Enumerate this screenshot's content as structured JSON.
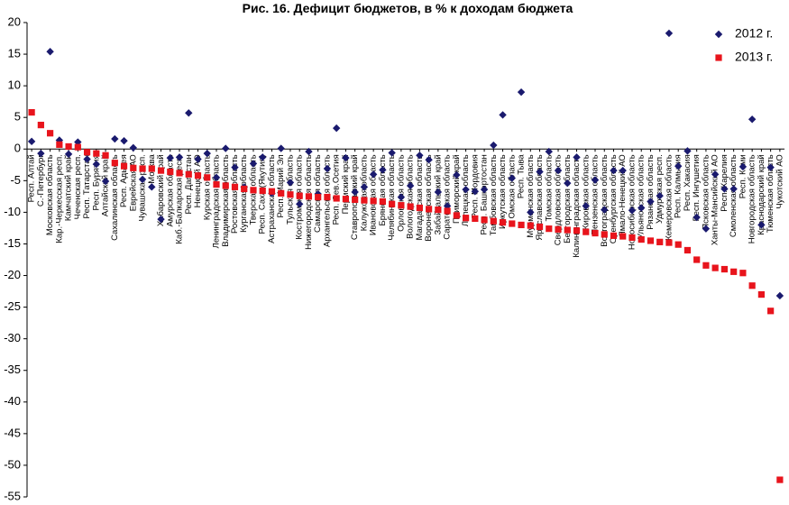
{
  "chart_data": {
    "type": "scatter-category",
    "title": "Рис. 16. Дефицит бюджетов, в % к доходам бюджета",
    "categories": [
      "Респ. Алтай",
      "С.-Петербург",
      "Московская область",
      "Кар.-Черкесская респ.",
      "Камчатский край",
      "Чеченская респ.",
      "Респ. Татарстан",
      "Респ. Бурятия",
      "Алтайский край",
      "Сахалинская область",
      "Респ. Адыгея",
      "Еврейская АО",
      "Чувашская респ.",
      "Москва",
      "Хабаровский край",
      "Амурская область",
      "Каб.-Балкарская респ.",
      "Респ. Дагестан",
      "Ненецкий АО",
      "Курская область",
      "Ленинградская область",
      "Владимирская область",
      "Ростовская область",
      "Курганская область",
      "Тверская область",
      "Респ. Саха (Якутия)",
      "Астраханская область",
      "Респ. Марий Эл",
      "Тульская область",
      "Костромская область",
      "Нижегородская область",
      "Самарская область",
      "Архангельская область",
      "Респ. Сев.Осетия",
      "Пермский край",
      "Ставропольский край",
      "Калужская область",
      "Ивановская область",
      "Брянская область",
      "Челябинская область",
      "Орловская область",
      "Вологодская область",
      "Магаданская область",
      "Воронежская область",
      "Забайкальский край",
      "Саратовская область",
      "Приморский край",
      "Липецкая область",
      "Респ. Мордовия",
      "Респ. Башкортостан",
      "Тамбовская область",
      "Иркутская область",
      "Омская область",
      "Респ. Тыва",
      "Мурманская область",
      "Ярославская область",
      "Томская область",
      "Свердловская область",
      "Белгородская область",
      "Калининградская область",
      "Кировская область",
      "Пензенская область",
      "Волгоградская область",
      "Оренбургская область",
      "Ямало-Ненецкий АО",
      "Новосибирская область",
      "Ульяновская область",
      "Рязанская область",
      "Удмуртская респ.",
      "Кемеровская область",
      "Респ. Калмыкия",
      "Респ. Хакасия",
      "Респ. Ингушетия",
      "Псковская область",
      "Ханты-Мансийский АО",
      "Респ. Карелия",
      "Смоленская область",
      "Респ. Коми",
      "Новгородская область",
      "Краснодарский край",
      "Тюменская область",
      "Чукотский АО"
    ],
    "series": [
      {
        "name": "2012 г.",
        "color": "#1a1a6e",
        "marker": "diamond",
        "values": [
          1.2,
          -0.7,
          15.4,
          1.4,
          -0.8,
          1.1,
          -1.6,
          -2.4,
          -5.1,
          1.6,
          1.3,
          0.2,
          -4.8,
          -6.0,
          -11.1,
          -1.4,
          -1.3,
          5.7,
          -1.6,
          -0.7,
          -4.5,
          0.1,
          -2.9,
          -6.0,
          -2.3,
          -1.3,
          -7.0,
          0.1,
          -5.3,
          -8.7,
          -0.4,
          -7.1,
          -3.1,
          3.3,
          -1.4,
          -6.8,
          -6.0,
          -4.0,
          -3.3,
          -0.6,
          -7.6,
          -5.8,
          -1.0,
          -1.7,
          -6.8,
          -9.0,
          -4.1,
          -6.4,
          -6.7,
          -6.4,
          0.6,
          5.4,
          -4.6,
          9.0,
          -10.0,
          -3.6,
          -0.4,
          -3.4,
          -5.4,
          -1.3,
          -9.0,
          -4.9,
          -9.6,
          -3.4,
          -3.4,
          -9.7,
          -9.3,
          -8.3,
          -7.4,
          18.3,
          -2.7,
          -0.3,
          -10.8,
          -12.6,
          -4.0,
          -6.3,
          -6.3,
          -2.8,
          4.7,
          -12.0,
          -2.9,
          -23.2
        ]
      },
      {
        "name": "2013 г.",
        "color": "#e8141c",
        "marker": "square",
        "values": [
          5.8,
          3.8,
          2.5,
          0.7,
          0.4,
          0.3,
          -0.5,
          -0.7,
          -1.0,
          -2.2,
          -2.7,
          -3.0,
          -3.1,
          -3.1,
          -3.4,
          -3.6,
          -3.8,
          -4.0,
          -4.2,
          -4.5,
          -5.6,
          -5.8,
          -6.0,
          -6.3,
          -6.5,
          -6.6,
          -6.7,
          -7.0,
          -7.2,
          -7.4,
          -7.5,
          -7.6,
          -7.6,
          -7.8,
          -7.9,
          -8.0,
          -8.1,
          -8.2,
          -8.3,
          -8.7,
          -8.9,
          -9.1,
          -9.3,
          -9.5,
          -9.6,
          -9.8,
          -10.5,
          -10.9,
          -11.0,
          -11.2,
          -11.4,
          -11.6,
          -11.8,
          -12.0,
          -12.1,
          -12.3,
          -12.6,
          -12.7,
          -12.8,
          -12.9,
          -13.1,
          -13.3,
          -13.5,
          -13.7,
          -13.8,
          -14.0,
          -14.3,
          -14.5,
          -14.7,
          -14.8,
          -15.1,
          -16.0,
          -17.5,
          -18.4,
          -18.8,
          -19.0,
          -19.4,
          -19.6,
          -21.6,
          -23.0,
          -25.6,
          -52.3
        ]
      }
    ],
    "ylim": [
      -55,
      20
    ],
    "yticks": [
      20,
      15,
      10,
      5,
      0,
      -5,
      -10,
      -15,
      -20,
      -25,
      -30,
      -35,
      -40,
      -45,
      -50,
      -55
    ],
    "grid": false,
    "legend": "top-right"
  }
}
